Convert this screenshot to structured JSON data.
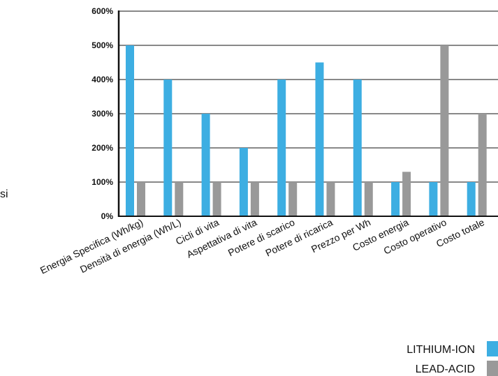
{
  "side_text": "si",
  "chart_data": {
    "type": "bar",
    "categories": [
      "Energia Specifica (Wh/kg)",
      "Densità di energia (Wh/L)",
      "Cicli di vita",
      "Aspettativa di vita",
      "Potere di scarico",
      "Potere di ricarica",
      "Prezzo per Wh",
      "Costo energia",
      "Costo operativo",
      "Costo totale"
    ],
    "series": [
      {
        "name": "LITHIUM-ION",
        "color": "#3daee2",
        "values": [
          500,
          400,
          300,
          200,
          400,
          450,
          400,
          100,
          100,
          100
        ]
      },
      {
        "name": "LEAD-ACID",
        "color": "#999999",
        "values": [
          100,
          100,
          100,
          100,
          100,
          100,
          100,
          130,
          500,
          300
        ]
      }
    ],
    "y_ticks": [
      "0%",
      "100%",
      "200%",
      "300%",
      "400%",
      "500%",
      "600%"
    ],
    "ylim": [
      0,
      600
    ],
    "grid": true,
    "legend_position": "bottom-right"
  }
}
